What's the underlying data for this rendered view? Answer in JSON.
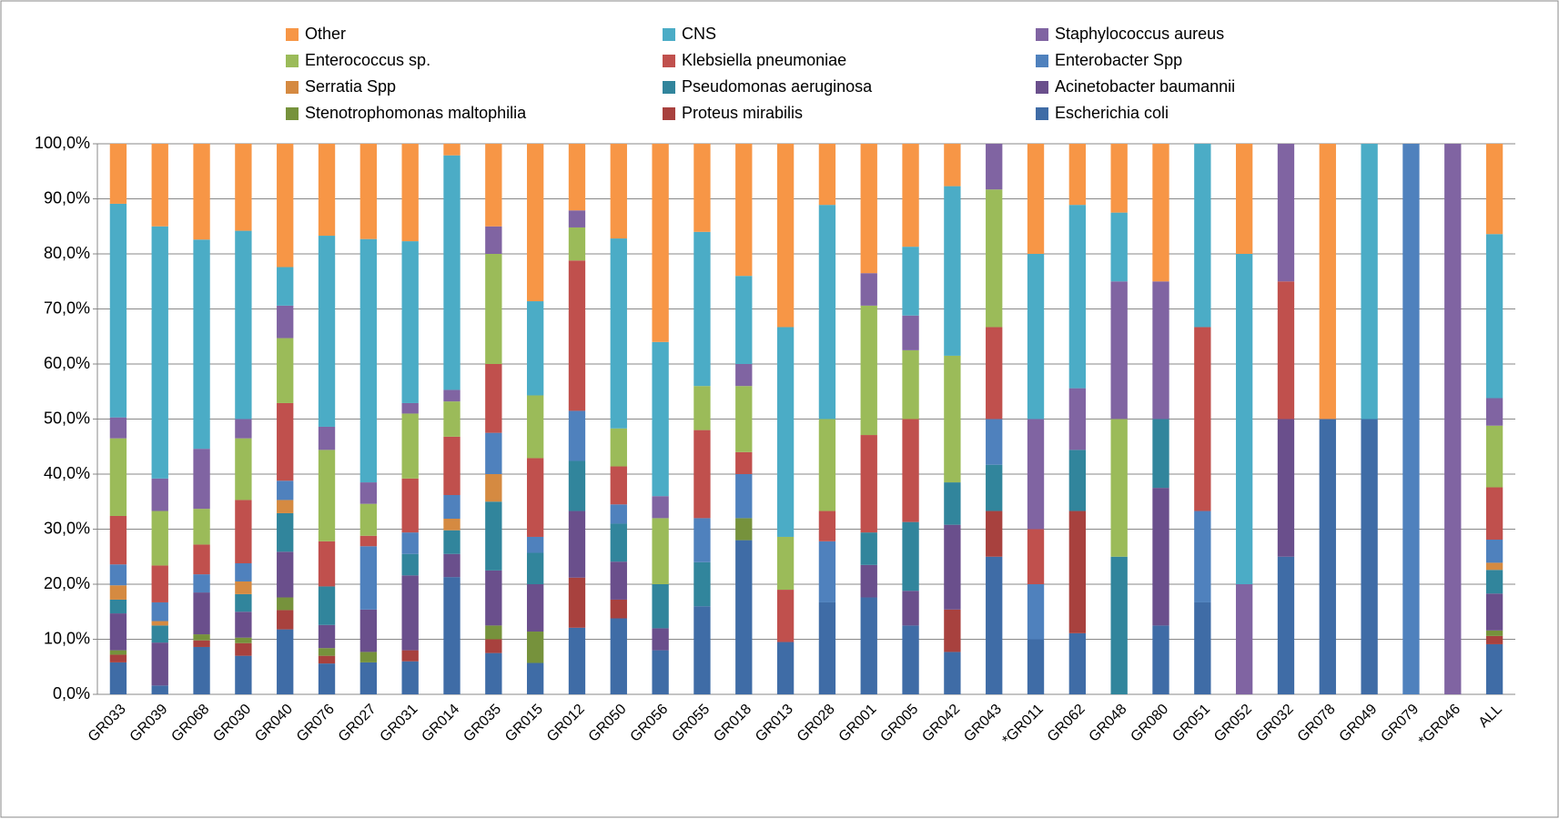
{
  "chart_data": {
    "type": "stacked_bar",
    "categories": [
      "GR033",
      "GR039",
      "GR068",
      "GR030",
      "GR040",
      "GR076",
      "GR027",
      "GR031",
      "GR014",
      "GR035",
      "GR015",
      "GR012",
      "GR050",
      "GR056",
      "GR055",
      "GR018",
      "GR013",
      "GR028",
      "GR001",
      "GR005",
      "GR042",
      "GR043",
      "*GR011",
      "GR062",
      "GR048",
      "GR080",
      "GR051",
      "GR052",
      "GR032",
      "GR078",
      "GR049",
      "GR079",
      "*GR046",
      "ALL"
    ],
    "series": [
      {
        "name": "Escherichia coli",
        "color": "#3f6ca6",
        "values": [
          5.8,
          1.6,
          8.6,
          7,
          11.8,
          5.6,
          5.8,
          6,
          21.3,
          7.5,
          5.7,
          12.1,
          13.8,
          8,
          16,
          28,
          9.5,
          16.7,
          17.6,
          12.5,
          7.7,
          25,
          10,
          11.1,
          0,
          12.5,
          16.7,
          0,
          25,
          50,
          50,
          0,
          0,
          9.1
        ]
      },
      {
        "name": "Proteus mirabilis",
        "color": "#a8413e",
        "values": [
          1.4,
          0,
          1.2,
          2.3,
          3.5,
          1.4,
          0,
          2,
          0,
          2.5,
          0,
          9.1,
          3.4,
          0,
          0,
          0,
          0,
          0,
          0,
          0,
          7.7,
          8.3,
          0,
          22.2,
          0,
          0,
          0,
          0,
          0,
          0,
          0,
          0,
          0,
          1.5
        ]
      },
      {
        "name": "Stenotrophomonas maltophilia",
        "color": "#76923c",
        "values": [
          0.8,
          0,
          1.1,
          1,
          2.3,
          1.4,
          1.9,
          0,
          0,
          2.5,
          5.7,
          0,
          0,
          0,
          0,
          4,
          0,
          0,
          0,
          0,
          0,
          0,
          0,
          0,
          0,
          0,
          0,
          0,
          0,
          0,
          0,
          0,
          0,
          1
        ]
      },
      {
        "name": "Acinetobacter baumannii",
        "color": "#6a4f8c",
        "values": [
          6.7,
          7.8,
          7.6,
          4.7,
          8.3,
          4.2,
          7.7,
          13.6,
          4.2,
          10,
          8.6,
          12.1,
          6.9,
          4,
          0,
          0,
          0,
          0,
          5.9,
          6.3,
          15.4,
          0,
          0,
          0,
          0,
          25,
          0,
          0,
          25,
          0,
          0,
          0,
          0,
          6.7
        ]
      },
      {
        "name": "Pseudomonas aeruginosa",
        "color": "#31859c",
        "values": [
          2.5,
          3.1,
          0,
          3.2,
          7,
          7,
          0,
          3.9,
          4.3,
          12.5,
          5.7,
          9.1,
          6.9,
          8,
          8,
          0,
          0,
          0,
          5.9,
          12.5,
          7.7,
          8.4,
          0,
          11.1,
          25,
          12.5,
          0,
          0,
          0,
          0,
          0,
          0,
          0,
          4.3
        ]
      },
      {
        "name": "Serratia Spp",
        "color": "#d58a41",
        "values": [
          2.6,
          0.8,
          0,
          2.3,
          2.4,
          0,
          0,
          0,
          2.1,
          5,
          0,
          0,
          0,
          0,
          0,
          0,
          0,
          0,
          0,
          0,
          0,
          0,
          0,
          0,
          0,
          0,
          0,
          0,
          0,
          0,
          0,
          0,
          0,
          1.3
        ]
      },
      {
        "name": "Enterobacter Spp",
        "color": "#4f81bd",
        "values": [
          3.8,
          3.4,
          3.3,
          3.3,
          3.5,
          0,
          11.5,
          3.9,
          4.3,
          7.5,
          2.9,
          9.1,
          3.5,
          0,
          8,
          8,
          0,
          11.1,
          0,
          0,
          0,
          8.3,
          10,
          0,
          0,
          0,
          16.6,
          0,
          0,
          0,
          0,
          100,
          0,
          4.2
        ]
      },
      {
        "name": "Klebsiella pneumoniae",
        "color": "#c0504d",
        "values": [
          8.8,
          6.7,
          5.4,
          11.5,
          14.1,
          8.2,
          1.9,
          9.8,
          10.6,
          12.5,
          14.3,
          27.3,
          6.9,
          0,
          16,
          4,
          9.5,
          5.5,
          17.7,
          18.7,
          0,
          16.7,
          10,
          0,
          0,
          0,
          33.4,
          0,
          25,
          0,
          0,
          0,
          0,
          9.5
        ]
      },
      {
        "name": "Enterococcus sp.",
        "color": "#9bbb59",
        "values": [
          14.1,
          9.9,
          6.5,
          11.2,
          11.8,
          16.6,
          5.8,
          11.8,
          6.4,
          20,
          11.4,
          6,
          6.9,
          12,
          8,
          12,
          9.6,
          16.7,
          23.5,
          12.5,
          23,
          25,
          0,
          0,
          25,
          0,
          0,
          0,
          0,
          0,
          0,
          0,
          0,
          11.2
        ]
      },
      {
        "name": "Staphylococcus aureus",
        "color": "#8064a2",
        "values": [
          3.8,
          5.9,
          10.9,
          3.5,
          5.9,
          4.2,
          3.9,
          1.9,
          2.1,
          5,
          0,
          3.1,
          0,
          4,
          0,
          4,
          0,
          0,
          5.9,
          6.3,
          0,
          8.3,
          20,
          11.2,
          25,
          25,
          0,
          20,
          25,
          0,
          0,
          0,
          100,
          5
        ]
      },
      {
        "name": "CNS",
        "color": "#4bacc6",
        "values": [
          38.8,
          45.8,
          38,
          34.2,
          7,
          34.7,
          44.2,
          29.4,
          42.6,
          0,
          17.1,
          0,
          34.5,
          28,
          28,
          16,
          38.1,
          38.9,
          0,
          12.5,
          30.8,
          0,
          30,
          33.3,
          12.5,
          0,
          33.3,
          60,
          0,
          0,
          50,
          0,
          0,
          29.8
        ]
      },
      {
        "name": "Other",
        "color": "#f79646",
        "values": [
          10.9,
          15,
          17.4,
          15.8,
          22.4,
          16.7,
          17.3,
          17.7,
          2.1,
          15,
          28.6,
          12.1,
          17.2,
          36,
          16,
          24,
          33.3,
          11.1,
          23.5,
          18.7,
          7.7,
          0,
          20,
          11.1,
          12.5,
          25,
          0,
          20,
          0,
          50,
          0,
          0,
          0,
          16.4
        ]
      }
    ],
    "ylim": [
      0,
      100
    ],
    "yticks": [
      {
        "value": 0,
        "label": "0,0%"
      },
      {
        "value": 10,
        "label": "10,0%"
      },
      {
        "value": 20,
        "label": "20,0%"
      },
      {
        "value": 30,
        "label": "30,0%"
      },
      {
        "value": 40,
        "label": "40,0%"
      },
      {
        "value": 50,
        "label": "50,0%"
      },
      {
        "value": 60,
        "label": "60,0%"
      },
      {
        "value": 70,
        "label": "70,0%"
      },
      {
        "value": 80,
        "label": "80,0%"
      },
      {
        "value": 90,
        "label": "90,0%"
      },
      {
        "value": 100,
        "label": "100,0%"
      }
    ],
    "grid": true
  }
}
